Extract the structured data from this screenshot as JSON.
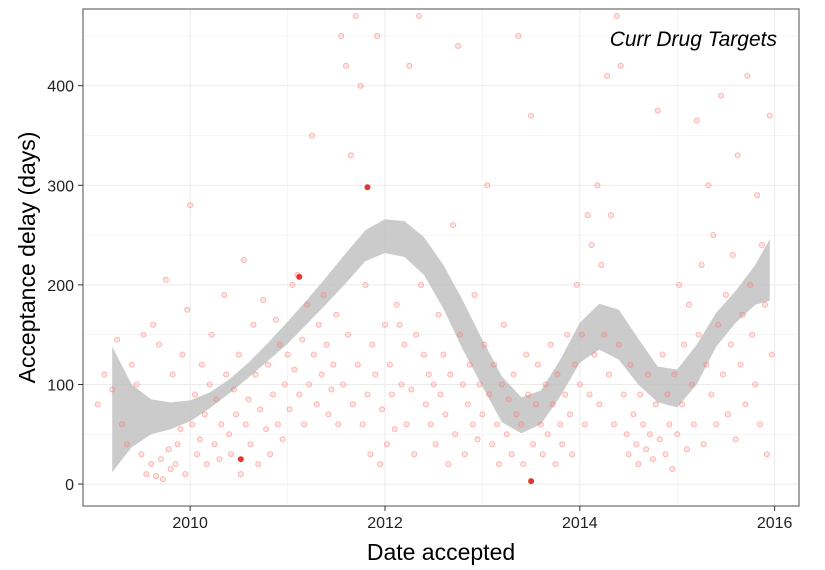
{
  "chart_data": {
    "type": "scatter",
    "title": "Curr Drug Targets",
    "xlabel": "Date accepted",
    "ylabel": "Acceptance delay (days)",
    "xlim": [
      2008.9,
      2016.25
    ],
    "ylim": [
      -22,
      477
    ],
    "x_ticks": [
      2010,
      2012,
      2014,
      2016
    ],
    "y_ticks": [
      0,
      100,
      200,
      300,
      400
    ],
    "grid": true,
    "legend": "none",
    "colors": {
      "point": "#f8766d",
      "highlight": "#e3201b",
      "band": "#bdbdbd",
      "panel_border": "#7f7f7f",
      "grid": "#ebebeb"
    },
    "points": [
      [
        2009.05,
        80
      ],
      [
        2009.12,
        110
      ],
      [
        2009.2,
        95
      ],
      [
        2009.25,
        145
      ],
      [
        2009.3,
        60
      ],
      [
        2009.35,
        40
      ],
      [
        2009.4,
        120
      ],
      [
        2009.45,
        100
      ],
      [
        2009.5,
        30
      ],
      [
        2009.52,
        150
      ],
      [
        2009.55,
        10
      ],
      [
        2009.6,
        20
      ],
      [
        2009.62,
        160
      ],
      [
        2009.65,
        8
      ],
      [
        2009.68,
        140
      ],
      [
        2009.7,
        25
      ],
      [
        2009.72,
        5
      ],
      [
        2009.75,
        205
      ],
      [
        2009.78,
        35
      ],
      [
        2009.8,
        15
      ],
      [
        2009.82,
        110
      ],
      [
        2009.85,
        20
      ],
      [
        2009.87,
        40
      ],
      [
        2009.9,
        55
      ],
      [
        2009.92,
        130
      ],
      [
        2009.95,
        10
      ],
      [
        2009.97,
        175
      ],
      [
        2010.0,
        280
      ],
      [
        2010.02,
        60
      ],
      [
        2010.05,
        90
      ],
      [
        2010.07,
        30
      ],
      [
        2010.1,
        45
      ],
      [
        2010.12,
        120
      ],
      [
        2010.15,
        70
      ],
      [
        2010.17,
        20
      ],
      [
        2010.2,
        100
      ],
      [
        2010.22,
        150
      ],
      [
        2010.25,
        40
      ],
      [
        2010.27,
        85
      ],
      [
        2010.3,
        25
      ],
      [
        2010.32,
        60
      ],
      [
        2010.35,
        190
      ],
      [
        2010.37,
        110
      ],
      [
        2010.4,
        50
      ],
      [
        2010.42,
        30
      ],
      [
        2010.45,
        95
      ],
      [
        2010.47,
        70
      ],
      [
        2010.5,
        130
      ],
      [
        2010.52,
        10
      ],
      [
        2010.55,
        225
      ],
      [
        2010.57,
        60
      ],
      [
        2010.6,
        85
      ],
      [
        2010.62,
        40
      ],
      [
        2010.65,
        160
      ],
      [
        2010.67,
        110
      ],
      [
        2010.7,
        20
      ],
      [
        2010.72,
        75
      ],
      [
        2010.75,
        185
      ],
      [
        2010.78,
        55
      ],
      [
        2010.8,
        120
      ],
      [
        2010.82,
        30
      ],
      [
        2010.85,
        90
      ],
      [
        2010.88,
        165
      ],
      [
        2010.9,
        60
      ],
      [
        2010.92,
        140
      ],
      [
        2010.95,
        45
      ],
      [
        2010.97,
        100
      ],
      [
        2011.0,
        130
      ],
      [
        2011.02,
        75
      ],
      [
        2011.05,
        200
      ],
      [
        2011.07,
        115
      ],
      [
        2011.1,
        210
      ],
      [
        2011.12,
        90
      ],
      [
        2011.15,
        145
      ],
      [
        2011.17,
        60
      ],
      [
        2011.2,
        180
      ],
      [
        2011.22,
        100
      ],
      [
        2011.25,
        350
      ],
      [
        2011.27,
        130
      ],
      [
        2011.3,
        80
      ],
      [
        2011.32,
        160
      ],
      [
        2011.35,
        110
      ],
      [
        2011.37,
        190
      ],
      [
        2011.4,
        140
      ],
      [
        2011.42,
        70
      ],
      [
        2011.45,
        95
      ],
      [
        2011.47,
        120
      ],
      [
        2011.5,
        170
      ],
      [
        2011.52,
        60
      ],
      [
        2011.55,
        450
      ],
      [
        2011.57,
        100
      ],
      [
        2011.6,
        420
      ],
      [
        2011.62,
        150
      ],
      [
        2011.65,
        330
      ],
      [
        2011.67,
        80
      ],
      [
        2011.7,
        470
      ],
      [
        2011.72,
        120
      ],
      [
        2011.75,
        400
      ],
      [
        2011.77,
        60
      ],
      [
        2011.8,
        200
      ],
      [
        2011.82,
        90
      ],
      [
        2011.85,
        30
      ],
      [
        2011.87,
        140
      ],
      [
        2011.9,
        110
      ],
      [
        2011.92,
        450
      ],
      [
        2011.95,
        20
      ],
      [
        2011.97,
        75
      ],
      [
        2012.0,
        160
      ],
      [
        2012.02,
        40
      ],
      [
        2012.05,
        120
      ],
      [
        2012.07,
        90
      ],
      [
        2012.1,
        55
      ],
      [
        2012.12,
        180
      ],
      [
        2012.15,
        160
      ],
      [
        2012.17,
        100
      ],
      [
        2012.2,
        140
      ],
      [
        2012.22,
        60
      ],
      [
        2012.25,
        420
      ],
      [
        2012.27,
        95
      ],
      [
        2012.3,
        30
      ],
      [
        2012.32,
        150
      ],
      [
        2012.35,
        470
      ],
      [
        2012.37,
        200
      ],
      [
        2012.4,
        130
      ],
      [
        2012.42,
        80
      ],
      [
        2012.45,
        110
      ],
      [
        2012.47,
        60
      ],
      [
        2012.5,
        100
      ],
      [
        2012.52,
        40
      ],
      [
        2012.55,
        170
      ],
      [
        2012.57,
        90
      ],
      [
        2012.6,
        130
      ],
      [
        2012.62,
        70
      ],
      [
        2012.65,
        20
      ],
      [
        2012.67,
        110
      ],
      [
        2012.7,
        260
      ],
      [
        2012.72,
        50
      ],
      [
        2012.75,
        440
      ],
      [
        2012.77,
        150
      ],
      [
        2012.8,
        100
      ],
      [
        2012.82,
        30
      ],
      [
        2012.85,
        80
      ],
      [
        2012.87,
        120
      ],
      [
        2012.9,
        60
      ],
      [
        2012.92,
        190
      ],
      [
        2012.95,
        45
      ],
      [
        2012.97,
        100
      ],
      [
        2013.0,
        70
      ],
      [
        2013.02,
        140
      ],
      [
        2013.05,
        300
      ],
      [
        2013.07,
        90
      ],
      [
        2013.1,
        40
      ],
      [
        2013.12,
        120
      ],
      [
        2013.15,
        60
      ],
      [
        2013.17,
        20
      ],
      [
        2013.2,
        100
      ],
      [
        2013.22,
        160
      ],
      [
        2013.25,
        50
      ],
      [
        2013.27,
        85
      ],
      [
        2013.3,
        30
      ],
      [
        2013.32,
        110
      ],
      [
        2013.35,
        70
      ],
      [
        2013.37,
        450
      ],
      [
        2013.4,
        60
      ],
      [
        2013.42,
        20
      ],
      [
        2013.45,
        130
      ],
      [
        2013.47,
        90
      ],
      [
        2013.5,
        370
      ],
      [
        2013.52,
        40
      ],
      [
        2013.55,
        80
      ],
      [
        2013.57,
        120
      ],
      [
        2013.6,
        60
      ],
      [
        2013.62,
        30
      ],
      [
        2013.65,
        100
      ],
      [
        2013.67,
        50
      ],
      [
        2013.7,
        140
      ],
      [
        2013.72,
        80
      ],
      [
        2013.75,
        20
      ],
      [
        2013.77,
        110
      ],
      [
        2013.8,
        60
      ],
      [
        2013.82,
        40
      ],
      [
        2013.85,
        90
      ],
      [
        2013.87,
        150
      ],
      [
        2013.9,
        70
      ],
      [
        2013.92,
        30
      ],
      [
        2013.95,
        120
      ],
      [
        2013.97,
        200
      ],
      [
        2014.0,
        100
      ],
      [
        2014.02,
        150
      ],
      [
        2014.05,
        60
      ],
      [
        2014.08,
        270
      ],
      [
        2014.1,
        90
      ],
      [
        2014.12,
        240
      ],
      [
        2014.15,
        130
      ],
      [
        2014.18,
        300
      ],
      [
        2014.2,
        80
      ],
      [
        2014.22,
        220
      ],
      [
        2014.25,
        150
      ],
      [
        2014.28,
        410
      ],
      [
        2014.3,
        110
      ],
      [
        2014.32,
        270
      ],
      [
        2014.35,
        60
      ],
      [
        2014.38,
        470
      ],
      [
        2014.4,
        140
      ],
      [
        2014.42,
        420
      ],
      [
        2014.45,
        90
      ],
      [
        2014.48,
        50
      ],
      [
        2014.5,
        30
      ],
      [
        2014.52,
        120
      ],
      [
        2014.55,
        70
      ],
      [
        2014.58,
        40
      ],
      [
        2014.6,
        20
      ],
      [
        2014.62,
        90
      ],
      [
        2014.65,
        60
      ],
      [
        2014.68,
        35
      ],
      [
        2014.7,
        110
      ],
      [
        2014.72,
        50
      ],
      [
        2014.75,
        25
      ],
      [
        2014.78,
        80
      ],
      [
        2014.8,
        375
      ],
      [
        2014.82,
        45
      ],
      [
        2014.85,
        130
      ],
      [
        2014.88,
        30
      ],
      [
        2014.9,
        90
      ],
      [
        2014.92,
        60
      ],
      [
        2014.95,
        15
      ],
      [
        2014.97,
        110
      ],
      [
        2015.0,
        50
      ],
      [
        2015.02,
        200
      ],
      [
        2015.05,
        80
      ],
      [
        2015.07,
        140
      ],
      [
        2015.1,
        35
      ],
      [
        2015.12,
        180
      ],
      [
        2015.15,
        100
      ],
      [
        2015.17,
        60
      ],
      [
        2015.2,
        365
      ],
      [
        2015.22,
        150
      ],
      [
        2015.25,
        220
      ],
      [
        2015.27,
        40
      ],
      [
        2015.3,
        120
      ],
      [
        2015.32,
        300
      ],
      [
        2015.35,
        90
      ],
      [
        2015.37,
        250
      ],
      [
        2015.4,
        60
      ],
      [
        2015.42,
        160
      ],
      [
        2015.45,
        390
      ],
      [
        2015.47,
        110
      ],
      [
        2015.5,
        190
      ],
      [
        2015.52,
        70
      ],
      [
        2015.55,
        140
      ],
      [
        2015.57,
        230
      ],
      [
        2015.6,
        45
      ],
      [
        2015.62,
        330
      ],
      [
        2015.65,
        120
      ],
      [
        2015.67,
        170
      ],
      [
        2015.7,
        80
      ],
      [
        2015.72,
        410
      ],
      [
        2015.75,
        200
      ],
      [
        2015.77,
        150
      ],
      [
        2015.8,
        100
      ],
      [
        2015.82,
        290
      ],
      [
        2015.85,
        60
      ],
      [
        2015.87,
        240
      ],
      [
        2015.9,
        180
      ],
      [
        2015.92,
        30
      ],
      [
        2015.95,
        370
      ],
      [
        2015.97,
        130
      ]
    ],
    "highlight_points": [
      [
        2010.52,
        25
      ],
      [
        2011.12,
        208
      ],
      [
        2011.82,
        298
      ],
      [
        2013.5,
        3
      ]
    ],
    "smooth_upper": [
      [
        2009.2,
        138
      ],
      [
        2009.4,
        100
      ],
      [
        2009.6,
        85
      ],
      [
        2009.8,
        82
      ],
      [
        2010.0,
        84
      ],
      [
        2010.2,
        92
      ],
      [
        2010.4,
        105
      ],
      [
        2010.6,
        122
      ],
      [
        2010.8,
        142
      ],
      [
        2011.0,
        163
      ],
      [
        2011.2,
        185
      ],
      [
        2011.4,
        208
      ],
      [
        2011.6,
        232
      ],
      [
        2011.8,
        255
      ],
      [
        2012.0,
        266
      ],
      [
        2012.2,
        264
      ],
      [
        2012.4,
        248
      ],
      [
        2012.6,
        220
      ],
      [
        2012.8,
        184
      ],
      [
        2013.0,
        145
      ],
      [
        2013.2,
        108
      ],
      [
        2013.4,
        87
      ],
      [
        2013.6,
        94
      ],
      [
        2013.8,
        125
      ],
      [
        2014.0,
        162
      ],
      [
        2014.2,
        181
      ],
      [
        2014.4,
        175
      ],
      [
        2014.6,
        146
      ],
      [
        2014.8,
        118
      ],
      [
        2015.0,
        115
      ],
      [
        2015.2,
        140
      ],
      [
        2015.4,
        172
      ],
      [
        2015.6,
        194
      ],
      [
        2015.8,
        220
      ],
      [
        2015.95,
        246
      ]
    ],
    "smooth_lower": [
      [
        2009.2,
        12
      ],
      [
        2009.4,
        37
      ],
      [
        2009.6,
        50
      ],
      [
        2009.8,
        55
      ],
      [
        2010.0,
        63
      ],
      [
        2010.2,
        76
      ],
      [
        2010.4,
        91
      ],
      [
        2010.6,
        107
      ],
      [
        2010.8,
        124
      ],
      [
        2011.0,
        141
      ],
      [
        2011.2,
        161
      ],
      [
        2011.4,
        181
      ],
      [
        2011.6,
        202
      ],
      [
        2011.8,
        224
      ],
      [
        2012.0,
        232
      ],
      [
        2012.2,
        228
      ],
      [
        2012.4,
        210
      ],
      [
        2012.6,
        176
      ],
      [
        2012.8,
        135
      ],
      [
        2013.0,
        98
      ],
      [
        2013.2,
        62
      ],
      [
        2013.4,
        51
      ],
      [
        2013.6,
        60
      ],
      [
        2013.8,
        88
      ],
      [
        2014.0,
        122
      ],
      [
        2014.2,
        135
      ],
      [
        2014.4,
        125
      ],
      [
        2014.6,
        100
      ],
      [
        2014.8,
        82
      ],
      [
        2015.0,
        77
      ],
      [
        2015.2,
        100
      ],
      [
        2015.4,
        138
      ],
      [
        2015.6,
        162
      ],
      [
        2015.8,
        180
      ],
      [
        2015.95,
        184
      ]
    ]
  }
}
